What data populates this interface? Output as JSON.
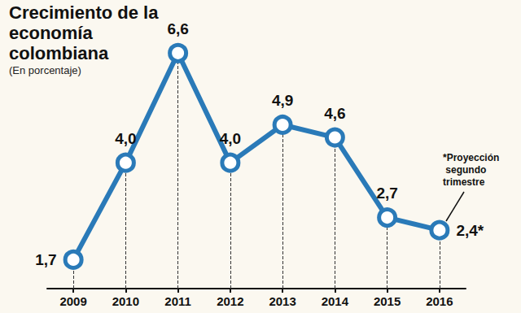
{
  "chart_data": {
    "type": "line",
    "title": "Crecimiento de la economía colombiana",
    "subtitle": "(En porcentaje)",
    "annotation": "*Proyección segundo trimestre",
    "categories": [
      "2009",
      "2010",
      "2011",
      "2012",
      "2013",
      "2014",
      "2015",
      "2016"
    ],
    "values": [
      1.7,
      4.0,
      6.6,
      4.0,
      4.9,
      4.6,
      2.7,
      2.4
    ],
    "value_labels": [
      "1,7",
      "4,0",
      "6,6",
      "4,0",
      "4,9",
      "4,6",
      "2,7",
      "2,4*"
    ],
    "color": "#2a7ab8",
    "marker": "circle",
    "data_labels": true,
    "tick_labels": "x"
  }
}
